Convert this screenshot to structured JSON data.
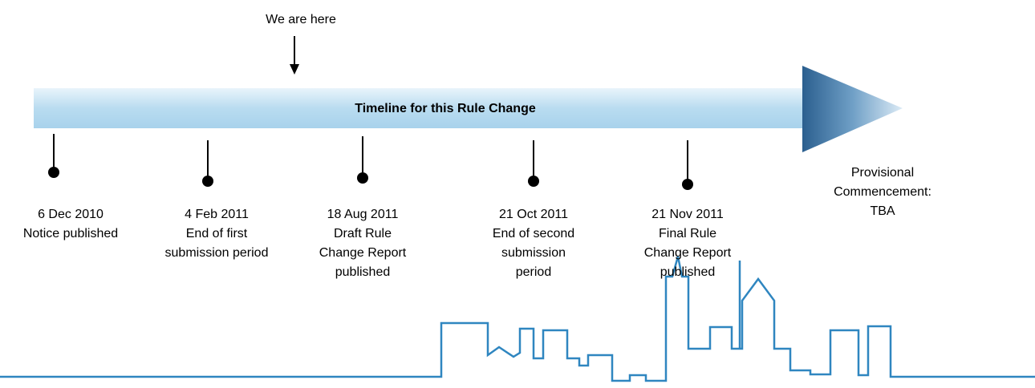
{
  "marker": "We are here",
  "title": "Timeline for this Rule Change",
  "milestones": [
    {
      "lines": [
        "6 Dec 2010",
        "Notice published"
      ]
    },
    {
      "lines": [
        "4 Feb 2011",
        "End of first",
        "submission period"
      ]
    },
    {
      "lines": [
        "18 Aug 2011",
        "Draft Rule",
        "Change Report",
        "published"
      ]
    },
    {
      "lines": [
        "21 Oct 2011",
        "End of second",
        "submission",
        "period"
      ]
    },
    {
      "lines": [
        "21 Nov 2011",
        "Final Rule",
        "Change Report",
        "published"
      ]
    }
  ],
  "end": {
    "lines": [
      "Provisional",
      "Commencement:",
      "TBA"
    ]
  }
}
